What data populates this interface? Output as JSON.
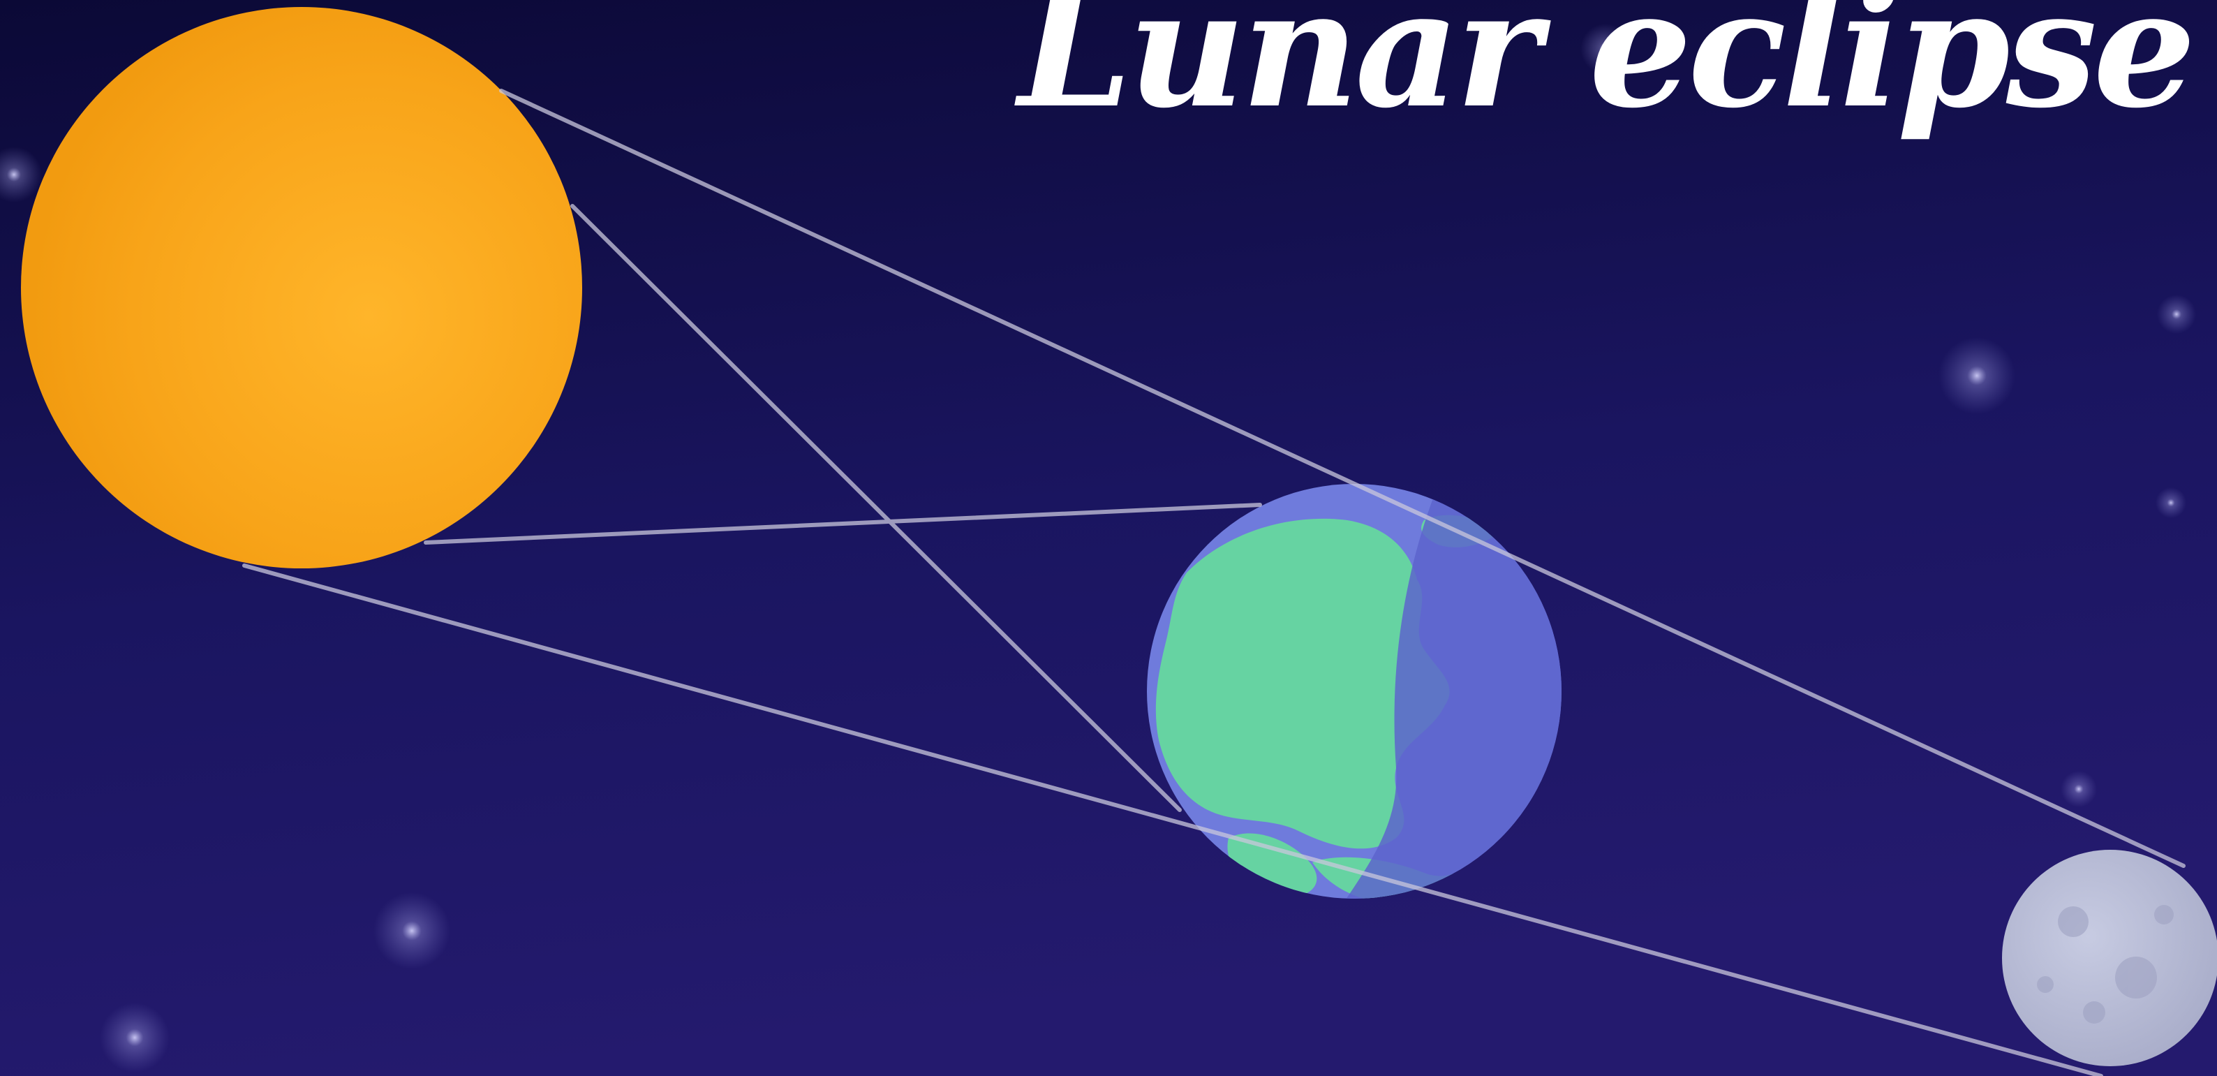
{
  "title": "Lunar eclipse",
  "colors": {
    "sky_top": "#0b0936",
    "sky_bottom": "#241a6e",
    "sun": "#f8a419",
    "earth_ocean": "#6f7bdc",
    "earth_land": "#66d3a2",
    "moon": "#b9bdd6",
    "rays": "#c9c7dc",
    "title": "#ffffff"
  },
  "bodies": [
    "sun",
    "earth",
    "moon"
  ]
}
